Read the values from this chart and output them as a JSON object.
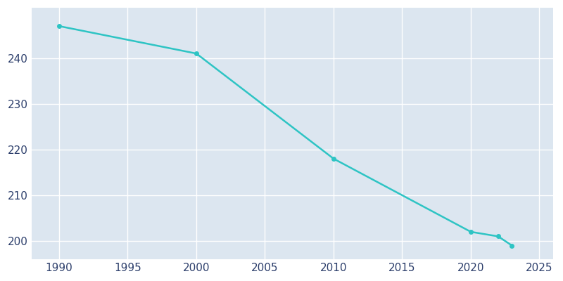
{
  "years": [
    1990,
    2000,
    2010,
    2020,
    2022,
    2023
  ],
  "population": [
    247,
    241,
    218,
    202,
    201,
    199
  ],
  "line_color": "#2EC4C4",
  "marker_color": "#2EC4C4",
  "plot_background_color": "#DCE6F0",
  "fig_background_color": "#FFFFFF",
  "grid_color": "#FFFFFF",
  "tick_label_color": "#2C3E6B",
  "xlim": [
    1988,
    2026
  ],
  "ylim": [
    196,
    251
  ],
  "xticks": [
    1990,
    1995,
    2000,
    2005,
    2010,
    2015,
    2020,
    2025
  ],
  "yticks": [
    200,
    210,
    220,
    230,
    240
  ]
}
